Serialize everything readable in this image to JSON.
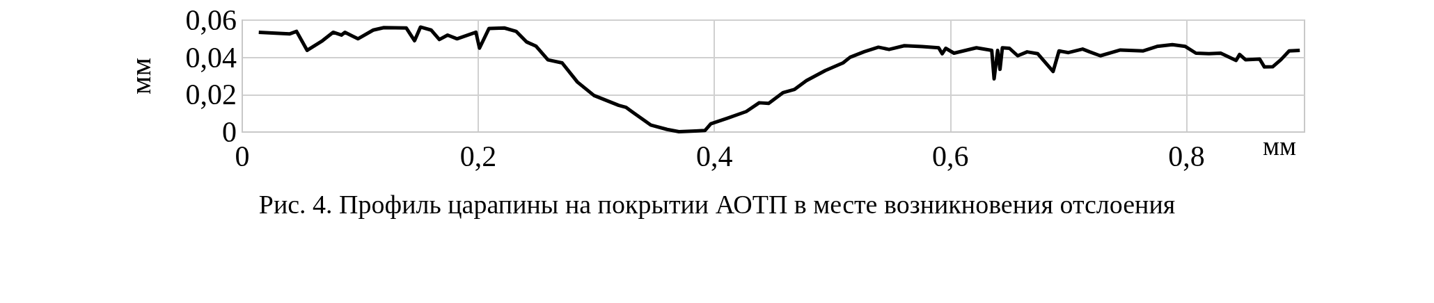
{
  "chart_data": {
    "type": "line",
    "title": "Рис. 4. Профиль царапины на покрытии АОТП в месте возникновения отслоения",
    "xlabel": "мм",
    "ylabel": "мм",
    "grid": true,
    "xlim": [
      0,
      0.9
    ],
    "ylim": [
      0,
      0.06
    ],
    "xticks": [
      0,
      {
        "value": 0.2,
        "label": "0,2"
      },
      {
        "value": 0.4,
        "label": "0,4"
      },
      {
        "value": 0.6,
        "label": "0,6"
      },
      {
        "value": 0.8,
        "label": "0,8"
      }
    ],
    "yticks": [
      0,
      {
        "value": 0.02,
        "label": "0,02"
      },
      {
        "value": 0.04,
        "label": "0,04"
      },
      {
        "value": 0.06,
        "label": "0,06"
      }
    ],
    "series": [
      {
        "color": "#000000",
        "x": [
          0.014,
          0.04,
          0.046,
          0.055,
          0.068,
          0.077,
          0.084,
          0.087,
          0.098,
          0.111,
          0.12,
          0.139,
          0.146,
          0.151,
          0.16,
          0.167,
          0.174,
          0.182,
          0.198,
          0.201,
          0.209,
          0.222,
          0.232,
          0.241,
          0.249,
          0.259,
          0.271,
          0.284,
          0.298,
          0.319,
          0.325,
          0.33,
          0.346,
          0.36,
          0.37,
          0.384,
          0.392,
          0.397,
          0.411,
          0.427,
          0.438,
          0.446,
          0.458,
          0.468,
          0.478,
          0.494,
          0.509,
          0.515,
          0.527,
          0.539,
          0.548,
          0.561,
          0.576,
          0.59,
          0.593,
          0.596,
          0.603,
          0.622,
          0.635,
          0.637,
          0.64,
          0.642,
          0.644,
          0.65,
          0.657,
          0.665,
          0.674,
          0.687,
          0.692,
          0.7,
          0.712,
          0.718,
          0.727,
          0.744,
          0.763,
          0.775,
          0.788,
          0.799,
          0.808,
          0.819,
          0.829,
          0.842,
          0.845,
          0.85,
          0.862,
          0.866,
          0.873,
          0.88,
          0.887,
          0.896
        ],
        "values": [
          0.0535,
          0.0526,
          0.054,
          0.0438,
          0.049,
          0.0535,
          0.052,
          0.0535,
          0.05,
          0.0547,
          0.056,
          0.0558,
          0.049,
          0.0563,
          0.0547,
          0.0496,
          0.052,
          0.05,
          0.0535,
          0.045,
          0.0555,
          0.0558,
          0.054,
          0.0483,
          0.046,
          0.0387,
          0.0371,
          0.0268,
          0.0196,
          0.0143,
          0.0133,
          0.011,
          0.0038,
          0.0014,
          0.0002,
          0.0006,
          0.0008,
          0.0044,
          0.0074,
          0.011,
          0.0157,
          0.0154,
          0.0211,
          0.0229,
          0.0276,
          0.033,
          0.0371,
          0.0401,
          0.0431,
          0.0455,
          0.0443,
          0.0463,
          0.0458,
          0.0452,
          0.042,
          0.0449,
          0.0423,
          0.0452,
          0.0438,
          0.0285,
          0.0438,
          0.0336,
          0.0452,
          0.0449,
          0.0409,
          0.043,
          0.042,
          0.0325,
          0.0435,
          0.0426,
          0.0445,
          0.043,
          0.0409,
          0.044,
          0.0435,
          0.0459,
          0.0469,
          0.0459,
          0.0423,
          0.042,
          0.0423,
          0.0384,
          0.0416,
          0.0388,
          0.0391,
          0.0349,
          0.035,
          0.0388,
          0.0435,
          0.0438
        ]
      }
    ]
  }
}
